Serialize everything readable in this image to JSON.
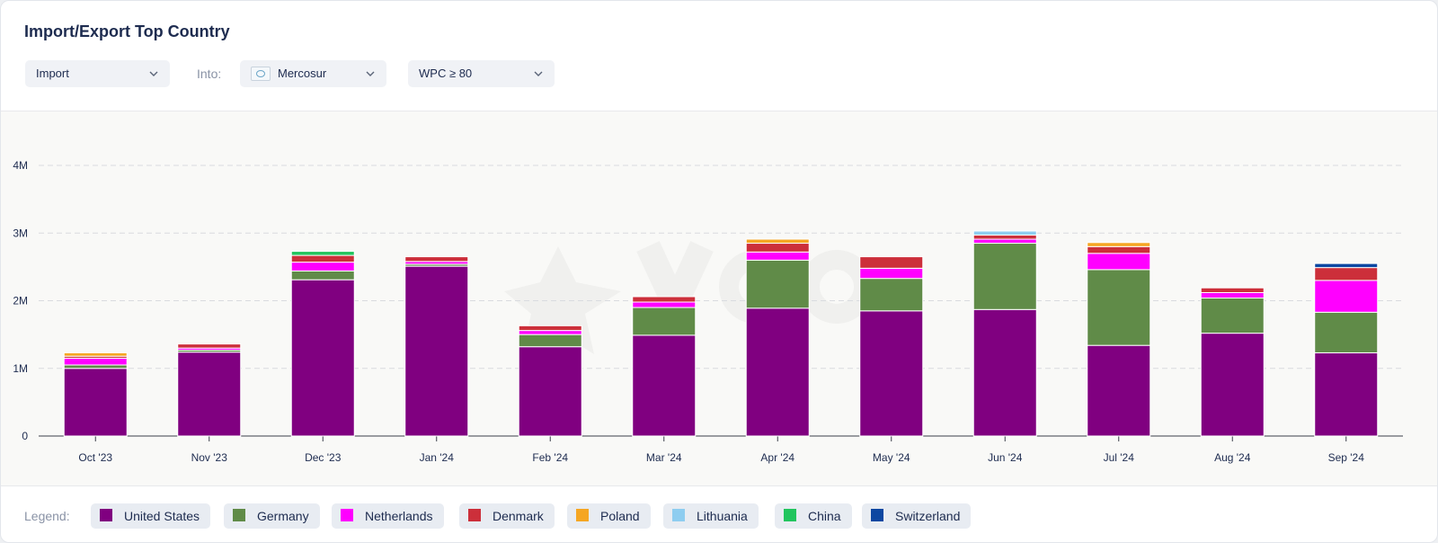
{
  "header": {
    "title": "Import/Export Top Country"
  },
  "controls": {
    "flow": {
      "value": "Import"
    },
    "into_label": "Into:",
    "region": {
      "value": "Mercosur"
    },
    "wpc": {
      "value": "WPC ≥ 80"
    }
  },
  "legend": {
    "label": "Legend:",
    "items": [
      {
        "name": "United States",
        "color": "#800080"
      },
      {
        "name": "Germany",
        "color": "#608b48"
      },
      {
        "name": "Netherlands",
        "color": "#ff00ff"
      },
      {
        "name": "Denmark",
        "color": "#cc2f3a"
      },
      {
        "name": "Poland",
        "color": "#f5a623"
      },
      {
        "name": "Lithuania",
        "color": "#8ecdf0"
      },
      {
        "name": "China",
        "color": "#22c55e"
      },
      {
        "name": "Switzerland",
        "color": "#0c47a1"
      }
    ]
  },
  "chart_data": {
    "type": "bar",
    "stacked": true,
    "categories": [
      "Oct '23",
      "Nov '23",
      "Dec '23",
      "Jan '24",
      "Feb '24",
      "Mar '24",
      "Apr '24",
      "May '24",
      "Jun '24",
      "Jul '24",
      "Aug '24",
      "Sep '24"
    ],
    "yticks": [
      "0",
      "1M",
      "2M",
      "3M",
      "4M"
    ],
    "ylim": [
      0,
      4000000
    ],
    "grid": true,
    "legend_position": "bottom",
    "series": [
      {
        "name": "United States",
        "color": "#800080",
        "values": [
          1000000,
          1240000,
          2310000,
          2510000,
          1320000,
          1490000,
          1890000,
          1850000,
          1870000,
          1340000,
          1520000,
          1230000
        ]
      },
      {
        "name": "Germany",
        "color": "#608b48",
        "values": [
          50000,
          30000,
          130000,
          30000,
          180000,
          410000,
          710000,
          480000,
          980000,
          1120000,
          520000,
          600000
        ]
      },
      {
        "name": "Netherlands",
        "color": "#ff00ff",
        "values": [
          100000,
          30000,
          130000,
          40000,
          60000,
          80000,
          120000,
          150000,
          60000,
          240000,
          80000,
          470000
        ]
      },
      {
        "name": "Denmark",
        "color": "#cc2f3a",
        "values": [
          30000,
          60000,
          100000,
          70000,
          70000,
          80000,
          130000,
          170000,
          60000,
          100000,
          70000,
          190000
        ]
      },
      {
        "name": "Poland",
        "color": "#f5a623",
        "values": [
          50000,
          0,
          0,
          0,
          0,
          0,
          60000,
          0,
          0,
          60000,
          0,
          0
        ]
      },
      {
        "name": "Lithuania",
        "color": "#8ecdf0",
        "values": [
          0,
          0,
          0,
          0,
          0,
          0,
          0,
          0,
          60000,
          0,
          0,
          0
        ]
      },
      {
        "name": "China",
        "color": "#22c55e",
        "values": [
          0,
          0,
          60000,
          0,
          0,
          0,
          0,
          0,
          0,
          0,
          0,
          0
        ]
      },
      {
        "name": "Switzerland",
        "color": "#0c47a1",
        "values": [
          0,
          0,
          0,
          0,
          0,
          0,
          0,
          0,
          0,
          0,
          0,
          60000
        ]
      }
    ]
  }
}
